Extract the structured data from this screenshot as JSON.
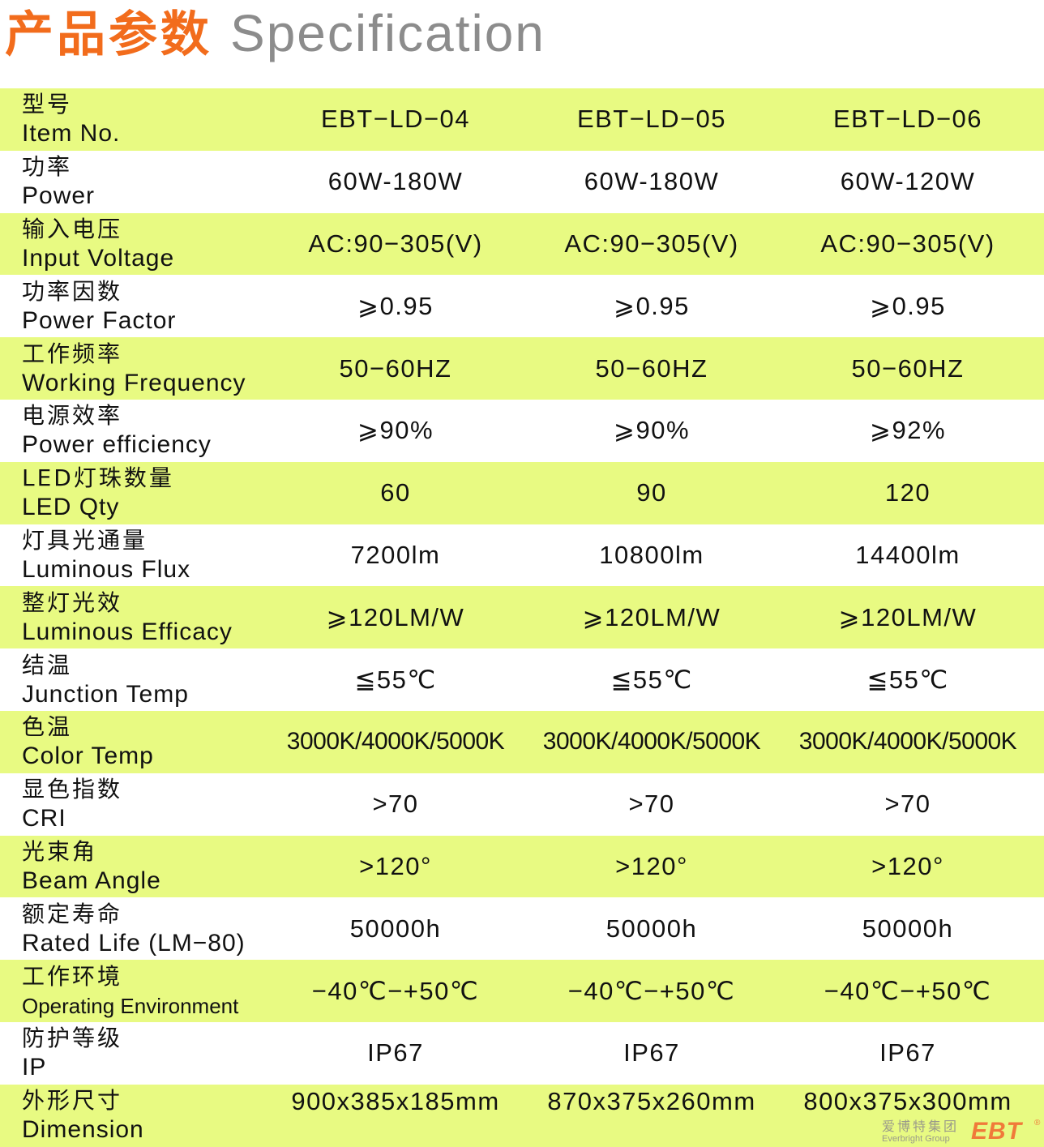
{
  "title": {
    "cn": "产品参数",
    "en": "Specification"
  },
  "colors": {
    "title_accent": "#f26c1c",
    "row_highlight": "#e8fa82",
    "title_grey": "#8c8c8c"
  },
  "rows": [
    {
      "cn": "型号",
      "en": "Item No.",
      "values": [
        "EBT−LD−04",
        "EBT−LD−05",
        "EBT−LD−06"
      ]
    },
    {
      "cn": "功率",
      "en": "Power",
      "values": [
        "60W-180W",
        "60W-180W",
        "60W-120W"
      ]
    },
    {
      "cn": "输入电压",
      "en": "Input Voltage",
      "values": [
        "AC:90−305(V)",
        "AC:90−305(V)",
        "AC:90−305(V)"
      ]
    },
    {
      "cn": "功率因数",
      "en": "Power Factor",
      "values": [
        "⩾0.95",
        "⩾0.95",
        "⩾0.95"
      ]
    },
    {
      "cn": "工作频率",
      "en": "Working Frequency",
      "values": [
        "50−60HZ",
        "50−60HZ",
        "50−60HZ"
      ]
    },
    {
      "cn": "电源效率",
      "en": "Power efficiency",
      "values": [
        "⩾90%",
        "⩾90%",
        "⩾92%"
      ]
    },
    {
      "cn": "LED灯珠数量",
      "en": "LED Qty",
      "values": [
        "60",
        "90",
        "120"
      ]
    },
    {
      "cn": "灯具光通量",
      "en": "Luminous Flux",
      "values": [
        "7200lm",
        "10800lm",
        "14400lm"
      ]
    },
    {
      "cn": "整灯光效",
      "en": "Luminous Efficacy",
      "values": [
        "⩾120LM/W",
        "⩾120LM/W",
        "⩾120LM/W"
      ]
    },
    {
      "cn": "结温",
      "en": "Junction Temp",
      "values": [
        "≦55℃",
        "≦55℃",
        "≦55℃"
      ]
    },
    {
      "cn": "色温",
      "en": "Color Temp",
      "values": [
        "3000K/4000K/5000K",
        "3000K/4000K/5000K",
        "3000K/4000K/5000K"
      ]
    },
    {
      "cn": "显色指数",
      "en": "CRI",
      "values": [
        ">70",
        ">70",
        ">70"
      ]
    },
    {
      "cn": "光束角",
      "en": "Beam Angle",
      "values": [
        ">120°",
        ">120°",
        ">120°"
      ]
    },
    {
      "cn": "额定寿命",
      "en": "Rated Life (LM−80)",
      "values": [
        "50000h",
        "50000h",
        "50000h"
      ]
    },
    {
      "cn": "工作环境",
      "en": "Operating Environment",
      "values": [
        "−40℃−+50℃",
        "−40℃−+50℃",
        "−40℃−+50℃"
      ]
    },
    {
      "cn": "防护等级",
      "en": "IP",
      "values": [
        "IP67",
        "IP67",
        "IP67"
      ]
    },
    {
      "cn": "外形尺寸",
      "en": "Dimension",
      "values": [
        "900x385x185mm",
        "870x375x260mm",
        "800x375x300mm"
      ]
    }
  ],
  "logo": {
    "cn": "爱博特集团",
    "en": "Everbright Group",
    "mark": "EBT",
    "reg": "®"
  }
}
